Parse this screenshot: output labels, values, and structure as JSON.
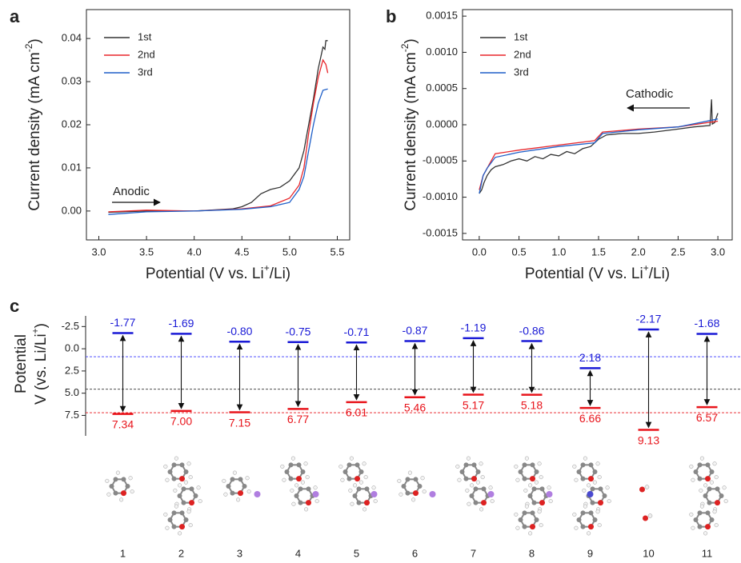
{
  "chart_data": [
    {
      "type": "line",
      "panel_label": "a",
      "x_label": [
        "Potential (V vs. Li",
        "+",
        "/Li)"
      ],
      "y_label": [
        "Current density (mA cm",
        "-2",
        ")"
      ],
      "xlim": [
        2.87,
        5.63
      ],
      "xticks": [
        {
          "value": 3,
          "label": "3.0"
        },
        3.5,
        {
          "value": 4,
          "label": "4.0"
        },
        4.5,
        {
          "value": 5,
          "label": "5.0"
        },
        5.5
      ],
      "ylim": [
        -0.0067,
        0.0467
      ],
      "yticks": [
        {
          "value": 0,
          "label": "0.00"
        },
        0.01,
        0.02,
        0.03,
        0.04
      ],
      "legend": "upper left",
      "annotations": [
        "Anodic"
      ],
      "series": [
        {
          "name": "1st",
          "color": "#333333",
          "x": [
            3.1,
            3.5,
            4.0,
            4.4,
            4.5,
            4.6,
            4.7,
            4.8,
            4.9,
            5.0,
            5.1,
            5.15,
            5.2,
            5.25,
            5.3,
            5.35,
            5.37,
            5.38,
            5.4
          ],
          "values": [
            -0.0003,
            0.0,
            0.0,
            0.0005,
            0.001,
            0.002,
            0.004,
            0.005,
            0.0055,
            0.007,
            0.01,
            0.014,
            0.02,
            0.026,
            0.033,
            0.038,
            0.0375,
            0.0395,
            0.0395
          ]
        },
        {
          "name": "2nd",
          "color": "#e8262b",
          "x": [
            3.1,
            3.5,
            4.0,
            4.5,
            4.8,
            5.0,
            5.1,
            5.15,
            5.2,
            5.25,
            5.3,
            5.35,
            5.38,
            5.4
          ],
          "values": [
            -0.0002,
            0.0002,
            0.0,
            0.0005,
            0.0012,
            0.003,
            0.006,
            0.01,
            0.018,
            0.025,
            0.031,
            0.035,
            0.034,
            0.032
          ]
        },
        {
          "name": "3rd",
          "color": "#1f5fc8",
          "x": [
            3.1,
            3.5,
            4.0,
            4.5,
            4.8,
            5.0,
            5.1,
            5.15,
            5.2,
            5.25,
            5.3,
            5.35,
            5.4
          ],
          "values": [
            -0.0008,
            -0.0002,
            0.0,
            0.0004,
            0.001,
            0.002,
            0.005,
            0.008,
            0.014,
            0.02,
            0.025,
            0.028,
            0.0283
          ]
        }
      ]
    },
    {
      "type": "line",
      "panel_label": "b",
      "x_label": [
        "Potential (V vs. Li",
        "+",
        "/Li)"
      ],
      "y_label": [
        "Current density (mA cm",
        "-2",
        ")"
      ],
      "xlim": [
        -0.21,
        3.18
      ],
      "xticks": [
        {
          "value": 0,
          "label": "0.0"
        },
        0.5,
        {
          "value": 1,
          "label": "1.0"
        },
        1.5,
        {
          "value": 2,
          "label": "2.0"
        },
        2.5,
        {
          "value": 3,
          "label": "3.0"
        }
      ],
      "ylim": [
        -0.00159,
        0.00159
      ],
      "yticks": [
        -0.0015,
        {
          "value": -0.001,
          "label": "-0.0010"
        },
        -0.0005,
        {
          "value": 0,
          "label": "0.0000"
        },
        0.0005,
        {
          "value": 0.001,
          "label": "0.0010"
        },
        0.0015
      ],
      "legend": "upper left",
      "annotations": [
        "Cathodic"
      ],
      "series": [
        {
          "name": "1st",
          "color": "#333333",
          "x": [
            0.0,
            0.03,
            0.06,
            0.1,
            0.15,
            0.2,
            0.3,
            0.4,
            0.5,
            0.6,
            0.7,
            0.8,
            0.9,
            1.0,
            1.1,
            1.2,
            1.3,
            1.4,
            1.5,
            1.6,
            1.8,
            2.0,
            2.2,
            2.5,
            2.7,
            2.9,
            2.92,
            2.93,
            2.96,
            3.0
          ],
          "values": [
            -0.00095,
            -0.0009,
            -0.0008,
            -0.0007,
            -0.00062,
            -0.00058,
            -0.00055,
            -0.0005,
            -0.00047,
            -0.0005,
            -0.00044,
            -0.00047,
            -0.00041,
            -0.00043,
            -0.00037,
            -0.0004,
            -0.00033,
            -0.0003,
            -0.0002,
            -0.00014,
            -0.00012,
            -0.00012,
            -0.0001,
            -6e-05,
            -3e-05,
            -1e-05,
            0.00035,
            1e-05,
            3e-05,
            0.00016
          ]
        },
        {
          "name": "2nd",
          "color": "#e8262b",
          "x": [
            0.0,
            0.05,
            0.1,
            0.2,
            0.5,
            1.0,
            1.45,
            1.55,
            2.0,
            2.5,
            3.0
          ],
          "values": [
            -0.0009,
            -0.0007,
            -0.0006,
            -0.0004,
            -0.00035,
            -0.00028,
            -0.00022,
            -0.0001,
            -6e-05,
            -3e-05,
            5e-05
          ]
        },
        {
          "name": "3rd",
          "color": "#1f5fc8",
          "x": [
            0.0,
            0.05,
            0.1,
            0.2,
            0.5,
            1.0,
            1.45,
            1.55,
            2.0,
            2.5,
            3.0
          ],
          "values": [
            -0.00095,
            -0.0007,
            -0.0006,
            -0.00045,
            -0.00038,
            -0.0003,
            -0.00025,
            -0.00012,
            -7e-05,
            -3e-05,
            8e-05
          ]
        }
      ]
    },
    {
      "type": "level",
      "panel_label": "c",
      "y_label": [
        "Potential",
        "V (vs. Li/Li",
        "+",
        ")"
      ],
      "ylim": [
        9.8,
        -3.7
      ],
      "yticks": [
        -2.5,
        {
          "value": 0,
          "label": "0.0"
        },
        2.5,
        {
          "value": 5,
          "label": "5.0"
        },
        7.5
      ],
      "categories": [
        "1",
        "2",
        "3",
        "4",
        "5",
        "6",
        "7",
        "8",
        "9",
        "10",
        "11"
      ],
      "reference_lines": [
        {
          "value": 0.9,
          "color": "#3b3bff"
        },
        {
          "value": 4.55,
          "color": "#333333"
        },
        {
          "value": 7.2,
          "color": "#e8141b"
        }
      ],
      "series": [
        {
          "color": "#1a1ad6",
          "values": [
            -1.77,
            -1.69,
            -0.8,
            -0.75,
            -0.71,
            -0.87,
            -1.19,
            -0.86,
            2.18,
            -2.17,
            -1.68
          ],
          "value_labels": [
            "-1.77",
            "-1.69",
            "-0.80",
            "-0.75",
            "-0.71",
            "-0.87",
            "-1.19",
            "-0.86",
            "2.18",
            "-2.17",
            "-1.68"
          ]
        },
        {
          "color": "#e8141b",
          "values": [
            7.34,
            7.0,
            7.15,
            6.77,
            6.01,
            5.46,
            5.17,
            5.18,
            6.66,
            9.13,
            6.57
          ],
          "value_labels": [
            "7.34",
            "7.00",
            "7.15",
            "6.77",
            "6.01",
            "5.46",
            "5.17",
            "5.18",
            "6.66",
            "9.13",
            "6.57"
          ]
        }
      ]
    }
  ]
}
